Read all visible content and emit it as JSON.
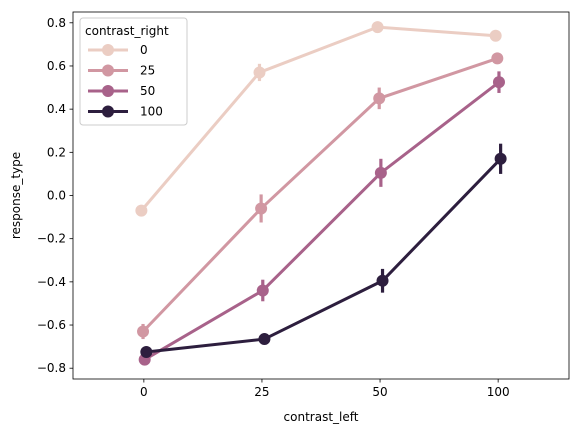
{
  "chart_data": {
    "type": "line",
    "xlabel": "contrast_left",
    "ylabel": "response_type",
    "categories": [
      "0",
      "25",
      "50",
      "100"
    ],
    "x_range": [
      -0.6,
      3.6
    ],
    "ylim": [
      -0.85,
      0.85
    ],
    "yticks": [
      -0.8,
      -0.6,
      -0.4,
      -0.2,
      0.0,
      0.2,
      0.4,
      0.6,
      0.8
    ],
    "ytick_labels": [
      "−0.8",
      "−0.6",
      "−0.4",
      "−0.2",
      "0.0",
      "0.2",
      "0.4",
      "0.6",
      "0.8"
    ],
    "grid": false,
    "legend": {
      "title": "contrast_right",
      "placement": "top-left"
    },
    "series": [
      {
        "name": "0",
        "color": "#ebcdc3",
        "values": [
          -0.07,
          0.57,
          0.78,
          0.74
        ],
        "err": [
          0.0,
          0.04,
          0.0,
          0.0
        ]
      },
      {
        "name": "25",
        "color": "#d197a2",
        "values": [
          -0.63,
          -0.06,
          0.45,
          0.635
        ],
        "err": [
          0.035,
          0.065,
          0.05,
          0.0
        ]
      },
      {
        "name": "50",
        "color": "#a8628a",
        "values": [
          -0.76,
          -0.44,
          0.105,
          0.525
        ],
        "err": [
          0.0,
          0.05,
          0.065,
          0.05
        ]
      },
      {
        "name": "100",
        "color": "#2d1e3e",
        "values": [
          -0.725,
          -0.665,
          -0.395,
          0.17
        ],
        "err": [
          0.0,
          0.0,
          0.055,
          0.07
        ]
      }
    ]
  }
}
